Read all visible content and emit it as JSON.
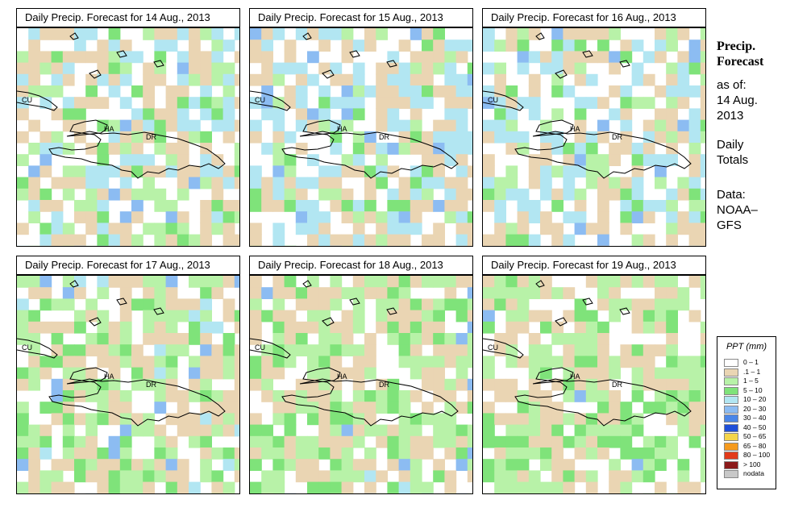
{
  "panels": [
    {
      "title": "Daily Precip. Forecast for  14 Aug., 2013",
      "seed": 14,
      "wet": 0.38
    },
    {
      "title": "Daily Precip. Forecast for  15 Aug., 2013",
      "seed": 15,
      "wet": 0.22
    },
    {
      "title": "Daily Precip. Forecast for  16 Aug., 2013",
      "seed": 16,
      "wet": 0.33
    },
    {
      "title": "Daily Precip. Forecast for  17 Aug., 2013",
      "seed": 17,
      "wet": 0.62
    },
    {
      "title": "Daily Precip. Forecast for  18 Aug., 2013",
      "seed": 18,
      "wet": 0.7
    },
    {
      "title": "Daily Precip. Forecast for  19 Aug., 2013",
      "seed": 19,
      "wet": 0.75
    }
  ],
  "map_labels": {
    "cuba": "CU",
    "haiti": "HA",
    "dominican_republic": "DR"
  },
  "sidebar": {
    "title_line1": "Precip.",
    "title_line2": "Forecast",
    "asof_label": "as of:",
    "asof_date1": "14 Aug.",
    "asof_date2": "2013",
    "totals1": "Daily",
    "totals2": "Totals",
    "data_label": "Data:",
    "data_source1": "NOAA–",
    "data_source2": "GFS"
  },
  "legend": {
    "title": "PPT (mm)",
    "entries": [
      {
        "label": "0 – 1",
        "color": "#ffffff"
      },
      {
        "label": ".1 – 1",
        "color": "#ead5b3"
      },
      {
        "label": "1 – 5",
        "color": "#b8f2a8"
      },
      {
        "label": "5 – 10",
        "color": "#7fe37a"
      },
      {
        "label": "10 – 20",
        "color": "#b2e6f2"
      },
      {
        "label": "20 – 30",
        "color": "#8cbcf2"
      },
      {
        "label": "30 – 40",
        "color": "#4a86e8"
      },
      {
        "label": "40 – 50",
        "color": "#1f4fd8"
      },
      {
        "label": "50 – 65",
        "color": "#f5d54a"
      },
      {
        "label": "65 – 80",
        "color": "#f59a1e"
      },
      {
        "label": "80 – 100",
        "color": "#e23a1a"
      },
      {
        "label": "> 100",
        "color": "#8b1a1a"
      },
      {
        "label": "nodata",
        "color": "#c8c8c8"
      }
    ]
  }
}
